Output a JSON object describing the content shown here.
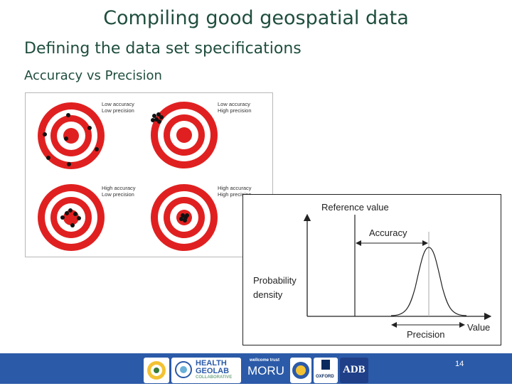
{
  "slide": {
    "title": "Compiling good geospatial data",
    "subtitle": "Defining the data set specifications",
    "subsubtitle": "Accuracy vs Precision",
    "page_number": "14"
  },
  "targets": {
    "tl": [
      "Low accuracy",
      "Low precision"
    ],
    "tr": [
      "Low accuracy",
      "High precision"
    ],
    "bl": [
      "High accuracy",
      "Low precision"
    ],
    "br": [
      "High accuracy",
      "High precision"
    ]
  },
  "density_chart": {
    "reference_label": "Reference value",
    "accuracy_label": "Accuracy",
    "ylabel_1": "Probability",
    "ylabel_2": "density",
    "precision_label": "Precision",
    "value_label": "Value"
  },
  "footer": {
    "logos": [
      "health-geolab-logo",
      "moru-logo",
      "oxford-logo",
      "adb-logo"
    ],
    "health_1": "HEALTH",
    "health_2": "GEOLAB",
    "health_3": "COLLABORATIVE",
    "moru": "MORU",
    "wellcome": "wellcome trust",
    "oxford": "OXFORD",
    "adb": "ADB"
  }
}
